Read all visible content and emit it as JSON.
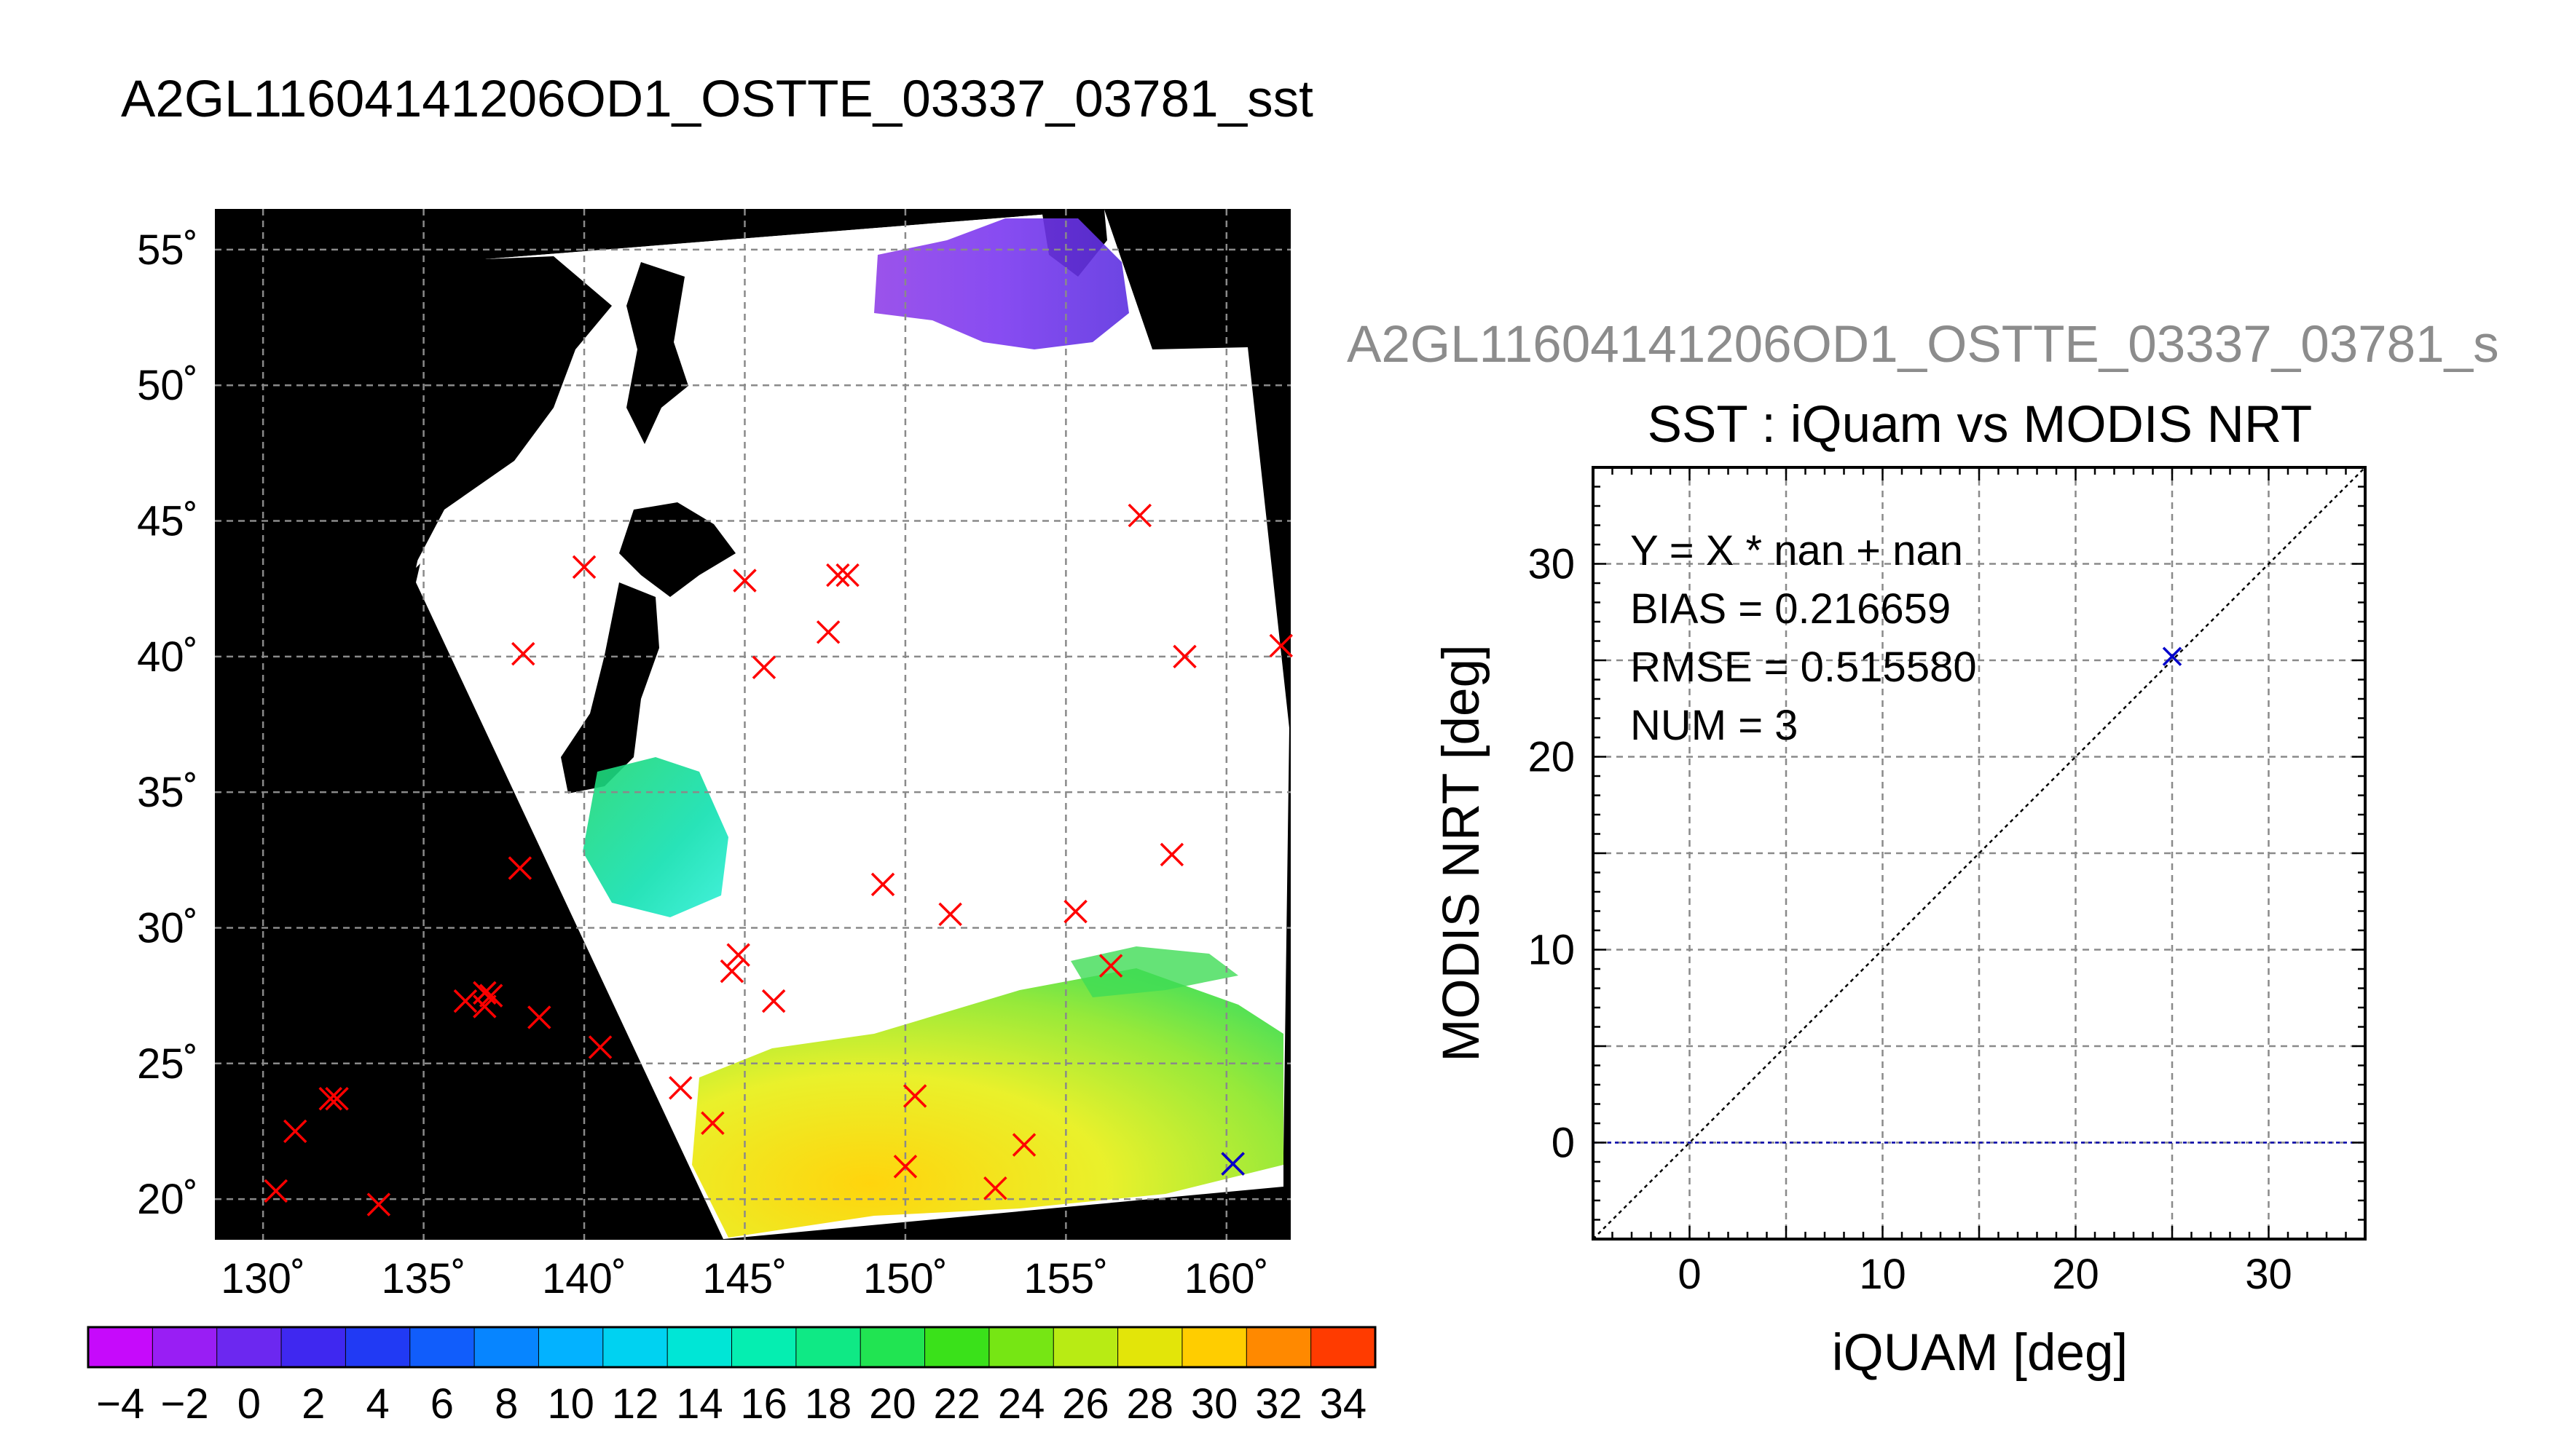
{
  "main_title": "A2GL11604141206OD1_OSTTE_03337_03781_sst",
  "sub_title": "A2GL11604141206OD1_OSTTE_03337_03781_s",
  "chart_data": [
    {
      "type": "map",
      "lon_range": [
        128.5,
        162.0
      ],
      "lat_range": [
        18.5,
        56.5
      ],
      "lon_ticks": [
        130,
        135,
        140,
        145,
        150,
        155,
        160
      ],
      "lat_ticks": [
        20,
        25,
        30,
        35,
        40,
        45,
        50,
        55
      ],
      "lon_tick_labels": [
        "130˚",
        "135˚",
        "140˚",
        "145˚",
        "150˚",
        "155˚",
        "160˚"
      ],
      "lat_tick_labels": [
        "20˚",
        "25˚",
        "30˚",
        "35˚",
        "40˚",
        "45˚",
        "50˚",
        "55˚"
      ],
      "grid": true,
      "background_color": "#000000",
      "swath_color": "#ffffff",
      "marker_color": "#ff0000",
      "matched_marker_color": "#0000cc",
      "points": [
        {
          "lon": 140.0,
          "lat": 43.3
        },
        {
          "lon": 145.0,
          "lat": 42.8
        },
        {
          "lon": 147.9,
          "lat": 43.0
        },
        {
          "lon": 148.2,
          "lat": 43.0
        },
        {
          "lon": 147.6,
          "lat": 40.9
        },
        {
          "lon": 157.3,
          "lat": 45.2
        },
        {
          "lon": 158.7,
          "lat": 40.0
        },
        {
          "lon": 161.7,
          "lat": 40.4
        },
        {
          "lon": 138.1,
          "lat": 40.1
        },
        {
          "lon": 145.6,
          "lat": 39.6
        },
        {
          "lon": 138.0,
          "lat": 32.2
        },
        {
          "lon": 149.3,
          "lat": 31.6
        },
        {
          "lon": 151.4,
          "lat": 30.5
        },
        {
          "lon": 155.3,
          "lat": 30.6
        },
        {
          "lon": 158.3,
          "lat": 32.7
        },
        {
          "lon": 156.4,
          "lat": 28.6
        },
        {
          "lon": 144.8,
          "lat": 29.0
        },
        {
          "lon": 144.6,
          "lat": 28.4
        },
        {
          "lon": 145.9,
          "lat": 27.3
        },
        {
          "lon": 136.3,
          "lat": 27.3
        },
        {
          "lon": 136.9,
          "lat": 27.6
        },
        {
          "lon": 137.1,
          "lat": 27.5
        },
        {
          "lon": 136.9,
          "lat": 27.1
        },
        {
          "lon": 138.6,
          "lat": 26.7
        },
        {
          "lon": 140.5,
          "lat": 25.6
        },
        {
          "lon": 143.0,
          "lat": 24.1
        },
        {
          "lon": 144.0,
          "lat": 22.8
        },
        {
          "lon": 150.3,
          "lat": 23.8
        },
        {
          "lon": 150.0,
          "lat": 21.2
        },
        {
          "lon": 152.8,
          "lat": 20.4
        },
        {
          "lon": 153.7,
          "lat": 22.0
        },
        {
          "lon": 160.2,
          "lat": 21.3
        },
        {
          "lon": 132.1,
          "lat": 23.7
        },
        {
          "lon": 132.3,
          "lat": 23.7
        },
        {
          "lon": 131.0,
          "lat": 22.5
        },
        {
          "lon": 130.4,
          "lat": 20.3
        },
        {
          "lon": 133.6,
          "lat": 19.8
        }
      ],
      "matched_point": {
        "lon": 160.2,
        "lat": 21.3
      }
    },
    {
      "type": "colorbar",
      "range": [
        -5,
        35
      ],
      "step": 2,
      "tick_labels": [
        "−4",
        "−2",
        "0",
        "2",
        "4",
        "6",
        "8",
        "10",
        "12",
        "14",
        "16",
        "18",
        "20",
        "22",
        "24",
        "26",
        "28",
        "30",
        "32",
        "34"
      ],
      "tick_values": [
        -4,
        -2,
        0,
        2,
        4,
        6,
        8,
        10,
        12,
        14,
        16,
        18,
        20,
        22,
        24,
        26,
        28,
        30,
        32,
        34
      ]
    },
    {
      "type": "scatter",
      "title": "SST : iQuam vs MODIS NRT",
      "xlabel": "iQUAM [deg]",
      "ylabel": "MODIS NRT [deg]",
      "xlim": [
        -5,
        35
      ],
      "ylim": [
        -5,
        35
      ],
      "x_ticks": [
        0,
        10,
        20,
        30
      ],
      "y_ticks": [
        0,
        10,
        20,
        30
      ],
      "x_tick_labels": [
        "0",
        "10",
        "20",
        "30"
      ],
      "y_tick_labels": [
        "0",
        "10",
        "20",
        "30"
      ],
      "grid": true,
      "points": [
        {
          "x": 25.0,
          "y": 25.2
        }
      ],
      "reference_line": "y = x",
      "zero_line": 0,
      "stats": [
        "Y = X * nan + nan",
        "BIAS = 0.216659",
        "RMSE = 0.515580",
        "NUM = 3"
      ],
      "point_color": "#0000cc",
      "zero_line_color": "#0000aa"
    }
  ]
}
